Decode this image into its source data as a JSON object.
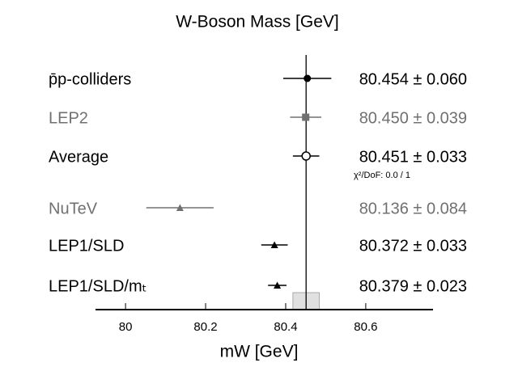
{
  "chart_data": {
    "type": "scatter",
    "title": "W-Boson Mass  [GeV]",
    "x_label": "mW  [GeV]",
    "categories": [
      "p̄p-colliders",
      "LEP2",
      "Average",
      "NuTeV",
      "LEP1/SLD",
      "LEP1/SLD/mₜ"
    ],
    "values": [
      80.454,
      80.45,
      80.451,
      80.136,
      80.372,
      80.379
    ],
    "errors": [
      0.06,
      0.039,
      0.033,
      0.084,
      0.033,
      0.023
    ],
    "value_labels": [
      "80.454 ± 0.060",
      "80.450 ± 0.039",
      "80.451 ± 0.033",
      "80.136 ± 0.084",
      "80.372 ± 0.033",
      "80.379 ± 0.023"
    ],
    "colors": [
      "#000000",
      "#707070",
      "#000000",
      "#707070",
      "#000000",
      "#000000"
    ],
    "markers": [
      "circle",
      "square",
      "open-circle",
      "triangle",
      "triangle",
      "triangle"
    ],
    "annotation": "χ²/DoF: 0.0 / 1",
    "xlim": [
      79.925,
      80.768
    ],
    "xticks": [
      80,
      80.2,
      80.4,
      80.6
    ]
  }
}
